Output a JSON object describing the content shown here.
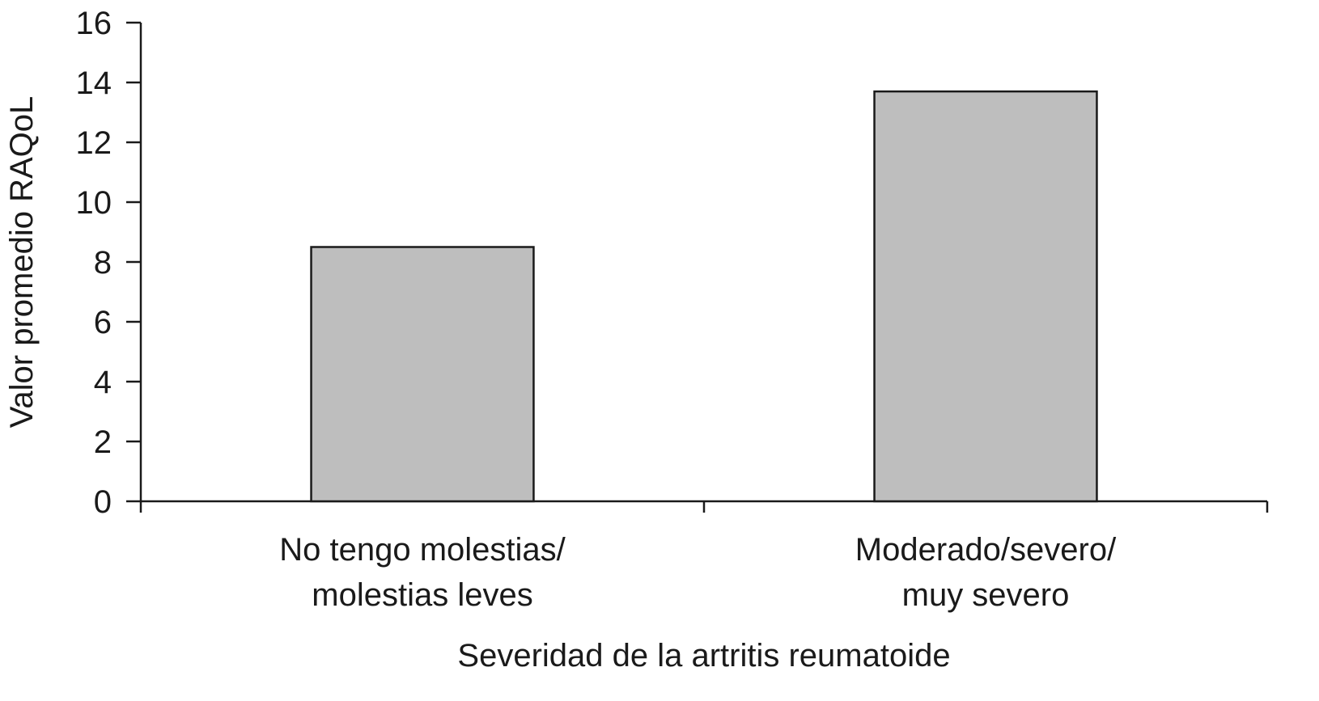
{
  "chart_data": {
    "type": "bar",
    "categories": [
      [
        "No tengo molestias/",
        "molestias leves"
      ],
      [
        "Moderado/severo/",
        "muy severo"
      ]
    ],
    "values": [
      8.5,
      13.7
    ],
    "xlabel": "Severidad de la artritis reumatoide",
    "ylabel": "Valor promedio RAQoL",
    "ylim": [
      0,
      16
    ],
    "yticks": [
      0,
      2,
      4,
      6,
      8,
      10,
      12,
      14,
      16
    ],
    "grid": false,
    "legend": "none",
    "colors": {
      "bar_fill": "#bebebe",
      "bar_stroke": "#1a1a1a",
      "axis": "#1a1a1a"
    }
  }
}
